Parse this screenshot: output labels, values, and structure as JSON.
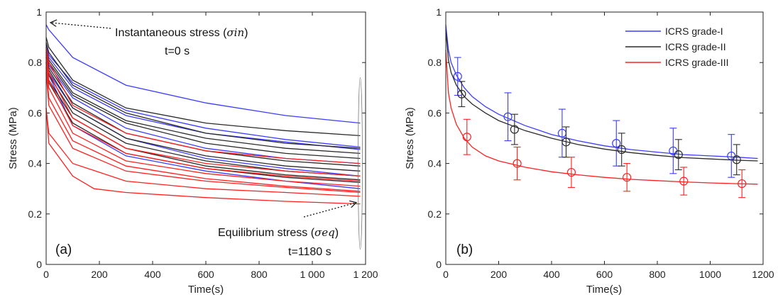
{
  "chart_data": [
    {
      "type": "line",
      "panel_label": "(a)",
      "xlabel": "Time(s)",
      "ylabel": "Stress (MPa)",
      "xlim": [
        0,
        1200
      ],
      "ylim": [
        0,
        1
      ],
      "xticks": [
        0,
        200,
        400,
        600,
        800,
        1000,
        1200
      ],
      "xtick_labels": [
        "0",
        "200",
        "400",
        "600",
        "800",
        "1 000",
        "1 200"
      ],
      "yticks": [
        0,
        0.2,
        0.4,
        0.6,
        0.8,
        1
      ],
      "ytick_labels": [
        "0",
        "0.2",
        "0.4",
        "0.6",
        "0.8",
        "1"
      ],
      "grid": false,
      "annotations": [
        {
          "text": "Instantaneous stress (",
          "math": "σin",
          "suffix": ")",
          "line2": "t=0 s",
          "points_to": [
            10,
            0.96
          ]
        },
        {
          "text": "Equilibrium stress (",
          "math": "σeq",
          "suffix": ")",
          "line2": "t=1180 s",
          "points_to": [
            1180,
            0.24
          ]
        }
      ],
      "colors": {
        "grade_I": "#3b3bff",
        "grade_II": "#2a2a2a",
        "grade_III": "#ff2020"
      },
      "series": [
        {
          "color": "grade_I",
          "x": [
            0,
            10,
            100,
            300,
            600,
            900,
            1180
          ],
          "y": [
            0.95,
            0.93,
            0.82,
            0.71,
            0.64,
            0.59,
            0.56
          ]
        },
        {
          "color": "grade_I",
          "x": [
            0,
            10,
            100,
            300,
            600,
            900,
            1180
          ],
          "y": [
            0.87,
            0.83,
            0.72,
            0.61,
            0.54,
            0.495,
            0.465
          ]
        },
        {
          "color": "grade_I",
          "x": [
            0,
            10,
            100,
            300,
            600,
            900,
            1180
          ],
          "y": [
            0.86,
            0.82,
            0.7,
            0.59,
            0.52,
            0.485,
            0.455
          ]
        },
        {
          "color": "grade_I",
          "x": [
            0,
            10,
            100,
            300,
            600,
            900,
            1180
          ],
          "y": [
            0.84,
            0.79,
            0.66,
            0.54,
            0.46,
            0.42,
            0.4
          ]
        },
        {
          "color": "grade_I",
          "x": [
            0,
            10,
            100,
            300,
            600,
            900,
            1180
          ],
          "y": [
            0.82,
            0.76,
            0.62,
            0.5,
            0.42,
            0.38,
            0.35
          ]
        },
        {
          "color": "grade_I",
          "x": [
            0,
            10,
            100,
            300,
            600,
            900,
            1180
          ],
          "y": [
            0.83,
            0.75,
            0.55,
            0.43,
            0.37,
            0.33,
            0.3
          ]
        },
        {
          "color": "grade_II",
          "x": [
            0,
            10,
            100,
            300,
            600,
            900,
            1180
          ],
          "y": [
            0.9,
            0.86,
            0.73,
            0.62,
            0.56,
            0.53,
            0.51
          ]
        },
        {
          "color": "grade_II",
          "x": [
            0,
            10,
            100,
            300,
            600,
            900,
            1180
          ],
          "y": [
            0.88,
            0.84,
            0.71,
            0.6,
            0.52,
            0.48,
            0.46
          ]
        },
        {
          "color": "grade_II",
          "x": [
            0,
            10,
            100,
            300,
            600,
            900,
            1180
          ],
          "y": [
            0.86,
            0.81,
            0.68,
            0.57,
            0.5,
            0.46,
            0.44
          ]
        },
        {
          "color": "grade_II",
          "x": [
            0,
            10,
            100,
            300,
            600,
            900,
            1180
          ],
          "y": [
            0.85,
            0.8,
            0.67,
            0.56,
            0.48,
            0.44,
            0.42
          ]
        },
        {
          "color": "grade_II",
          "x": [
            0,
            10,
            100,
            300,
            600,
            900,
            1180
          ],
          "y": [
            0.84,
            0.78,
            0.64,
            0.52,
            0.45,
            0.41,
            0.39
          ]
        },
        {
          "color": "grade_II",
          "x": [
            0,
            10,
            100,
            300,
            600,
            900,
            1180
          ],
          "y": [
            0.83,
            0.77,
            0.62,
            0.5,
            0.43,
            0.39,
            0.37
          ]
        },
        {
          "color": "grade_II",
          "x": [
            0,
            10,
            100,
            300,
            600,
            900,
            1180
          ],
          "y": [
            0.82,
            0.75,
            0.6,
            0.48,
            0.41,
            0.37,
            0.35
          ]
        },
        {
          "color": "grade_II",
          "x": [
            0,
            10,
            100,
            300,
            600,
            900,
            1180
          ],
          "y": [
            0.8,
            0.73,
            0.58,
            0.46,
            0.39,
            0.355,
            0.335
          ]
        },
        {
          "color": "grade_II",
          "x": [
            0,
            10,
            100,
            300,
            600,
            900,
            1180
          ],
          "y": [
            0.8,
            0.72,
            0.56,
            0.44,
            0.38,
            0.345,
            0.325
          ]
        },
        {
          "color": "grade_III",
          "x": [
            0,
            10,
            100,
            300,
            600,
            900,
            1180
          ],
          "y": [
            0.86,
            0.8,
            0.63,
            0.52,
            0.45,
            0.42,
            0.4
          ]
        },
        {
          "color": "grade_III",
          "x": [
            0,
            10,
            100,
            300,
            600,
            900,
            1180
          ],
          "y": [
            0.84,
            0.76,
            0.58,
            0.46,
            0.4,
            0.37,
            0.35
          ]
        },
        {
          "color": "grade_III",
          "x": [
            0,
            10,
            100,
            300,
            600,
            900,
            1180
          ],
          "y": [
            0.82,
            0.73,
            0.55,
            0.44,
            0.38,
            0.35,
            0.33
          ]
        },
        {
          "color": "grade_III",
          "x": [
            0,
            10,
            100,
            300,
            600,
            900,
            1180
          ],
          "y": [
            0.8,
            0.7,
            0.52,
            0.41,
            0.36,
            0.33,
            0.31
          ]
        },
        {
          "color": "grade_III",
          "x": [
            0,
            10,
            100,
            300,
            600,
            900,
            1180
          ],
          "y": [
            0.78,
            0.66,
            0.49,
            0.39,
            0.34,
            0.31,
            0.29
          ]
        },
        {
          "color": "grade_III",
          "x": [
            0,
            10,
            100,
            300,
            600,
            900,
            1180
          ],
          "y": [
            0.76,
            0.63,
            0.46,
            0.37,
            0.33,
            0.305,
            0.285
          ]
        },
        {
          "color": "grade_III",
          "x": [
            0,
            10,
            100,
            300,
            600,
            900,
            1180
          ],
          "y": [
            0.62,
            0.52,
            0.4,
            0.33,
            0.3,
            0.285,
            0.27
          ]
        },
        {
          "color": "grade_III",
          "x": [
            0,
            10,
            100,
            180,
            300,
            600,
            900,
            1180
          ],
          "y": [
            0.62,
            0.48,
            0.35,
            0.3,
            0.285,
            0.265,
            0.25,
            0.24
          ]
        }
      ]
    },
    {
      "type": "line",
      "panel_label": "(b)",
      "xlabel": "Time(s)",
      "ylabel": "Stress (MPa)",
      "xlim": [
        0,
        1200
      ],
      "ylim": [
        0,
        1
      ],
      "xticks": [
        0,
        200,
        400,
        600,
        800,
        1000,
        1200
      ],
      "xtick_labels": [
        "0",
        "200",
        "400",
        "600",
        "800",
        "1000",
        "1200"
      ],
      "yticks": [
        0,
        0.2,
        0.4,
        0.6,
        0.8,
        1
      ],
      "ytick_labels": [
        "0",
        "0.2",
        "0.4",
        "0.6",
        "0.8",
        "1"
      ],
      "grid": false,
      "legend_position": "top-right",
      "series": [
        {
          "name": "ICRS grade-I",
          "color": "#3b3bff",
          "fit_x": [
            0,
            10,
            20,
            40,
            70,
            100,
            150,
            200,
            300,
            400,
            500,
            600,
            700,
            800,
            900,
            1000,
            1100,
            1180
          ],
          "fit_y": [
            0.95,
            0.85,
            0.8,
            0.75,
            0.7,
            0.665,
            0.625,
            0.595,
            0.55,
            0.515,
            0.49,
            0.47,
            0.455,
            0.445,
            0.435,
            0.43,
            0.425,
            0.42
          ],
          "x": [
            45,
            235,
            440,
            645,
            860,
            1080
          ],
          "y": [
            0.745,
            0.585,
            0.52,
            0.48,
            0.45,
            0.43
          ],
          "err": [
            0.075,
            0.095,
            0.095,
            0.09,
            0.09,
            0.085
          ]
        },
        {
          "name": "ICRS grade-II",
          "color": "#2a2a2a",
          "fit_x": [
            0,
            10,
            20,
            40,
            70,
            100,
            150,
            200,
            300,
            400,
            500,
            600,
            700,
            800,
            900,
            1000,
            1100,
            1180
          ],
          "fit_y": [
            0.93,
            0.81,
            0.76,
            0.71,
            0.665,
            0.635,
            0.6,
            0.57,
            0.53,
            0.5,
            0.475,
            0.457,
            0.443,
            0.432,
            0.423,
            0.418,
            0.413,
            0.41
          ],
          "x": [
            60,
            260,
            455,
            665,
            880,
            1100
          ],
          "y": [
            0.675,
            0.535,
            0.485,
            0.455,
            0.435,
            0.415
          ],
          "err": [
            0.05,
            0.06,
            0.06,
            0.065,
            0.06,
            0.06
          ]
        },
        {
          "name": "ICRS grade-III",
          "color": "#ff2020",
          "fit_x": [
            0,
            10,
            20,
            40,
            70,
            100,
            150,
            200,
            300,
            400,
            500,
            600,
            700,
            800,
            900,
            1000,
            1100,
            1180
          ],
          "fit_y": [
            0.85,
            0.68,
            0.62,
            0.555,
            0.5,
            0.465,
            0.43,
            0.41,
            0.385,
            0.367,
            0.355,
            0.345,
            0.337,
            0.332,
            0.327,
            0.323,
            0.32,
            0.318
          ],
          "x": [
            80,
            270,
            475,
            685,
            900,
            1120
          ],
          "y": [
            0.505,
            0.4,
            0.365,
            0.345,
            0.33,
            0.32
          ],
          "err": [
            0.07,
            0.065,
            0.06,
            0.055,
            0.055,
            0.055
          ]
        }
      ]
    }
  ]
}
